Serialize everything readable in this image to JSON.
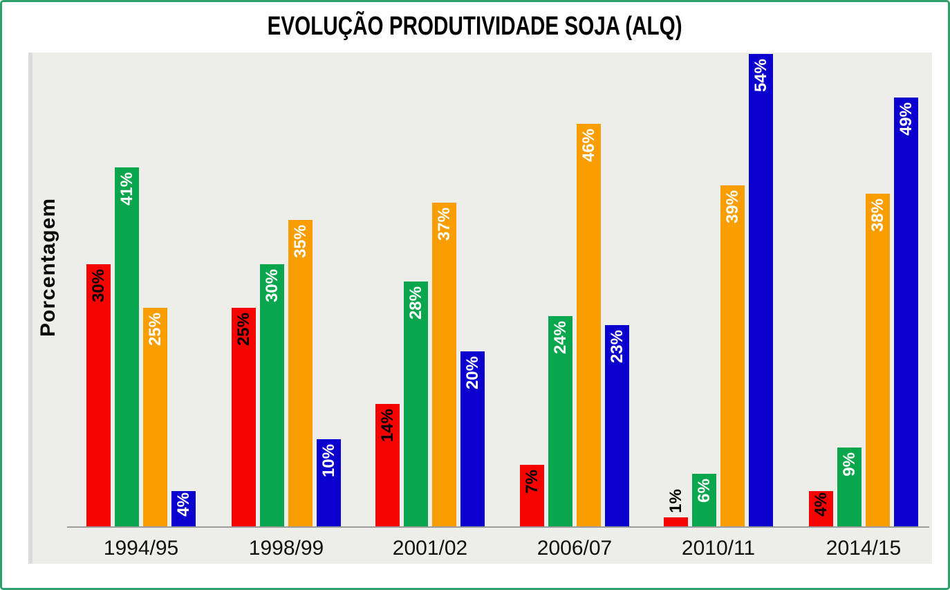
{
  "title": "EVOLUÇÃO PRODUTIVIDADE SOJA (ALQ)",
  "chart_data": {
    "type": "bar",
    "title": "EVOLUÇÃO PRODUTIVIDADE SOJA (ALQ)",
    "xlabel": "",
    "ylabel": "Porcentagem",
    "categories": [
      "1994/95",
      "1998/99",
      "2001/02",
      "2006/07",
      "2010/11",
      "2014/15"
    ],
    "series": [
      {
        "name": "red-series",
        "color": "#F40300",
        "label_color": "#000000",
        "values": [
          30,
          25,
          14,
          7,
          1,
          4
        ]
      },
      {
        "name": "green-series",
        "color": "#0AA64E",
        "label_color": "#FFFFFF",
        "values": [
          41,
          30,
          28,
          24,
          6,
          9
        ]
      },
      {
        "name": "orange-series",
        "color": "#FA9D00",
        "label_color": "#FFFFFF",
        "values": [
          25,
          35,
          37,
          46,
          39,
          38
        ]
      },
      {
        "name": "blue-series",
        "color": "#0C00CF",
        "label_color": "#FFFFFF",
        "values": [
          4,
          10,
          20,
          23,
          54,
          49
        ]
      }
    ],
    "value_label_suffix": "%",
    "ylim": [
      0,
      54
    ],
    "grid": false,
    "legend": "none",
    "plot_background": "#EDEDEA",
    "frame_border_color": "#2E9E6B",
    "axis_line_color": "#9C9C9C"
  }
}
